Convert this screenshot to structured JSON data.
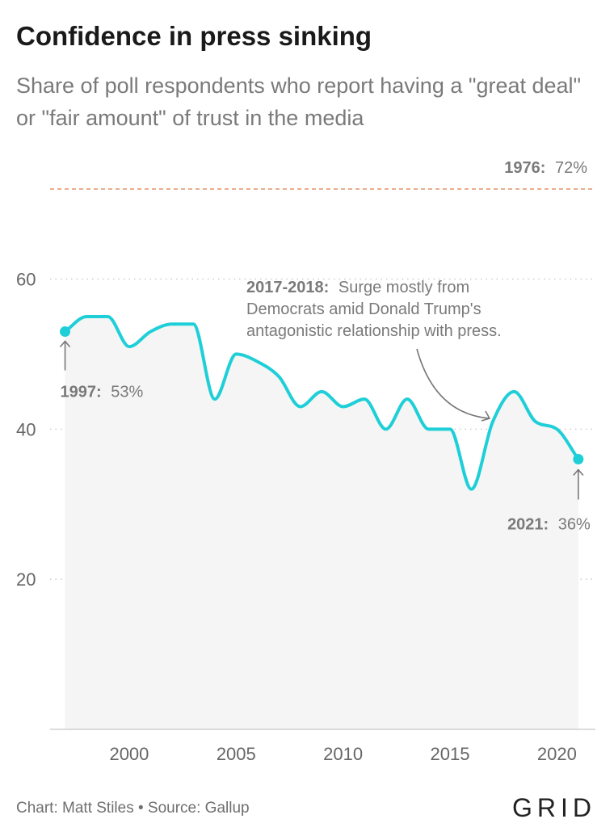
{
  "title": "Confidence in press sinking",
  "subtitle": "Share of poll respondents who report having a \"great deal\" or \"fair amount\" of trust in the media",
  "footer": {
    "credit": "Chart: Matt Stiles • Source: Gallup",
    "brand": "GRID"
  },
  "colors": {
    "line": "#1fcfd8",
    "area": "#f5f5f5",
    "reference": "#e8906a",
    "grid": "#cccccc",
    "annotation": "#7a7a7a",
    "axis_text": "#666666"
  },
  "chart_data": {
    "type": "line",
    "title": "Confidence in press sinking",
    "xlabel": "",
    "ylabel": "",
    "xlim": [
      1996.3,
      2021.8
    ],
    "ylim": [
      0,
      72
    ],
    "x_ticks": [
      2000,
      2005,
      2010,
      2015,
      2020
    ],
    "y_ticks": [
      20,
      40,
      60
    ],
    "grid": "horizontal dotted",
    "series": [
      {
        "x": [
          1997,
          1998,
          1999,
          2000,
          2001,
          2002,
          2003,
          2004,
          2005,
          2006,
          2007,
          2008,
          2009,
          2010,
          2011,
          2012,
          2013,
          2014,
          2015,
          2016,
          2017,
          2018,
          2019,
          2020,
          2021
        ],
        "values": [
          53,
          55,
          55,
          51,
          53,
          54,
          54,
          44,
          50,
          49,
          47,
          43,
          45,
          43,
          44,
          40,
          44,
          40,
          40,
          32,
          41,
          45,
          41,
          40,
          36
        ]
      }
    ],
    "reference_line": {
      "value": 72,
      "year_label": "1976:",
      "value_label": "72%"
    },
    "annotations": [
      {
        "x": 1997,
        "y": 53,
        "year_label": "1997:",
        "value_label": "53%"
      },
      {
        "x": 2021,
        "y": 36,
        "year_label": "2021:",
        "value_label": "36%"
      },
      {
        "x": 2017,
        "y": 41,
        "bold": "2017-2018:",
        "lines": [
          "Surge mostly from",
          "Democrats amid Donald Trump's",
          "antagonistic relationship with press."
        ]
      }
    ]
  }
}
